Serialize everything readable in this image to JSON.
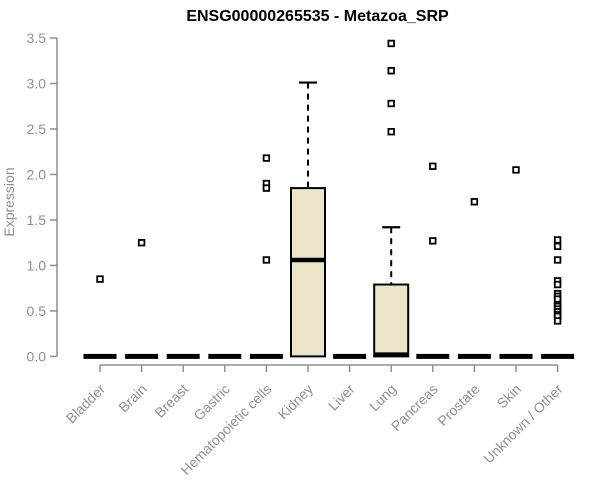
{
  "figure": {
    "title": "ENSG00000265535 - Metazoa_SRP"
  },
  "chart_data": {
    "type": "boxplot",
    "title": "ENSG00000265535 - Metazoa_SRP",
    "xlabel": "",
    "ylabel": "Expression",
    "ylim": [
      0.0,
      3.5
    ],
    "ytick_labels": [
      "0.0",
      "0.5",
      "1.0",
      "1.5",
      "2.0",
      "2.5",
      "3.0",
      "3.5"
    ],
    "grid": false,
    "legend": "none",
    "categories": [
      "Bladder",
      "Brain",
      "Breast",
      "Gastric",
      "Hematopoietic cells",
      "Kidney",
      "Liver",
      "Lung",
      "Pancreas",
      "Prostate",
      "Skin",
      "Unknown / Other"
    ],
    "series": [
      {
        "name": "Bladder",
        "whisker_low": 0.0,
        "q1": 0.0,
        "median": 0.0,
        "q3": 0.0,
        "whisker_high": 0.0,
        "outliers": [
          0.85
        ]
      },
      {
        "name": "Brain",
        "whisker_low": 0.0,
        "q1": 0.0,
        "median": 0.0,
        "q3": 0.0,
        "whisker_high": 0.0,
        "outliers": [
          1.25
        ]
      },
      {
        "name": "Breast",
        "whisker_low": 0.0,
        "q1": 0.0,
        "median": 0.0,
        "q3": 0.0,
        "whisker_high": 0.0,
        "outliers": []
      },
      {
        "name": "Gastric",
        "whisker_low": 0.0,
        "q1": 0.0,
        "median": 0.0,
        "q3": 0.0,
        "whisker_high": 0.0,
        "outliers": []
      },
      {
        "name": "Hematopoietic cells",
        "whisker_low": 0.0,
        "q1": 0.0,
        "median": 0.0,
        "q3": 0.0,
        "whisker_high": 0.0,
        "outliers": [
          2.18,
          1.9,
          1.85,
          1.06
        ]
      },
      {
        "name": "Kidney",
        "whisker_low": 0.0,
        "q1": 0.0,
        "median": 1.06,
        "q3": 1.85,
        "whisker_high": 3.01,
        "outliers": []
      },
      {
        "name": "Liver",
        "whisker_low": 0.0,
        "q1": 0.0,
        "median": 0.0,
        "q3": 0.0,
        "whisker_high": 0.0,
        "outliers": []
      },
      {
        "name": "Lung",
        "whisker_low": 0.0,
        "q1": 0.0,
        "median": 0.02,
        "q3": 0.79,
        "whisker_high": 1.42,
        "outliers": [
          3.44,
          3.14,
          2.78,
          2.47
        ]
      },
      {
        "name": "Pancreas",
        "whisker_low": 0.0,
        "q1": 0.0,
        "median": 0.0,
        "q3": 0.0,
        "whisker_high": 0.0,
        "outliers": [
          2.09,
          1.27
        ]
      },
      {
        "name": "Prostate",
        "whisker_low": 0.0,
        "q1": 0.0,
        "median": 0.0,
        "q3": 0.0,
        "whisker_high": 0.0,
        "outliers": [
          1.7
        ]
      },
      {
        "name": "Skin",
        "whisker_low": 0.0,
        "q1": 0.0,
        "median": 0.0,
        "q3": 0.0,
        "whisker_high": 0.0,
        "outliers": [
          2.05
        ]
      },
      {
        "name": "Unknown / Other",
        "whisker_low": 0.0,
        "q1": 0.0,
        "median": 0.0,
        "q3": 0.0,
        "whisker_high": 0.0,
        "outliers": [
          1.28,
          1.21,
          1.06,
          0.83,
          0.79,
          0.69,
          0.66,
          0.63,
          0.57,
          0.55,
          0.52,
          0.49,
          0.46,
          0.44,
          0.39
        ]
      }
    ],
    "colors": {
      "box_fill": "#EBE5C9",
      "box_stroke": "#000000",
      "median": "#000000",
      "whisker": "#000000",
      "outlier_stroke": "#000000",
      "outlier_fill": "#FFFFFF",
      "axis": "#8F8F8F",
      "tick_label": "#8F9094",
      "title": "#000000",
      "background": "#FFFFFF"
    }
  }
}
